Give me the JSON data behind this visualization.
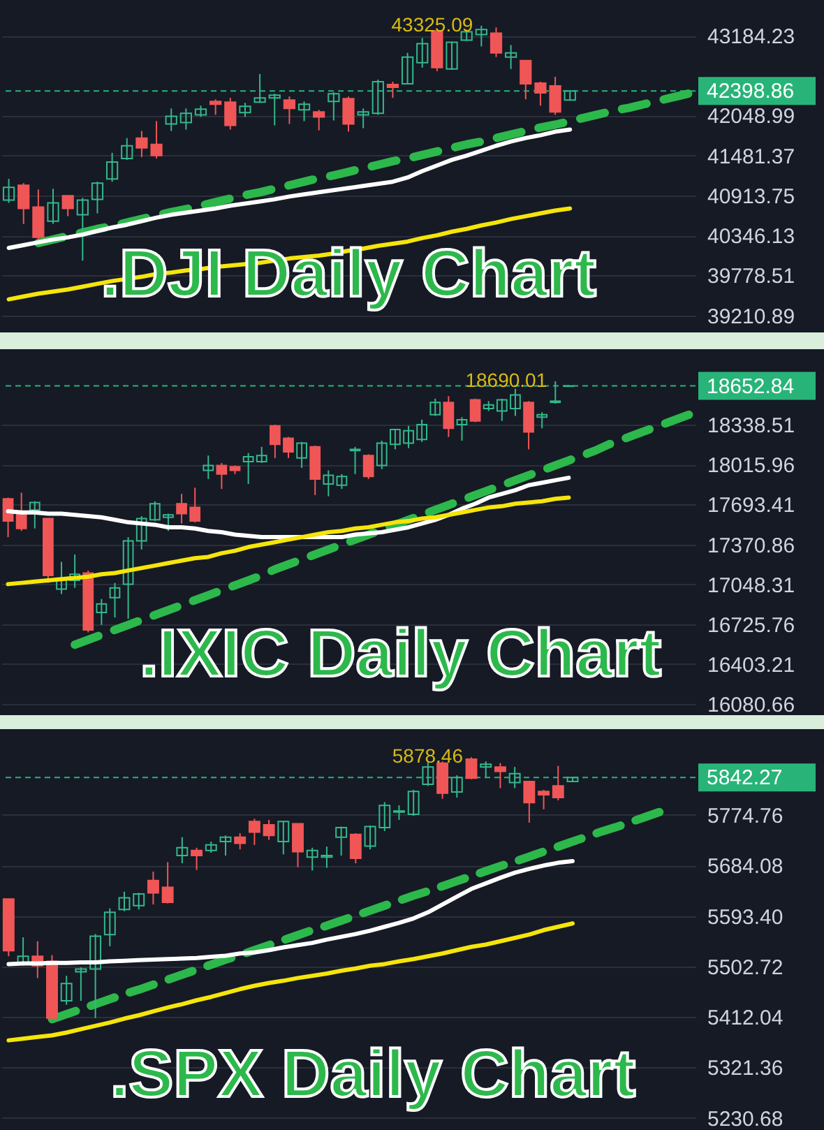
{
  "chart_data": [
    {
      "type": "candlestick",
      "title": ".DJI Daily Chart",
      "categories": [
        null,
        null,
        null,
        null,
        null,
        null,
        null,
        null,
        null,
        null,
        null,
        null,
        null,
        null,
        null,
        null,
        null,
        null,
        null,
        null,
        null,
        null,
        null,
        null,
        null,
        null,
        null,
        null,
        null,
        null,
        null,
        null,
        null,
        null,
        null,
        null,
        null,
        null,
        null,
        null,
        null,
        null,
        null,
        null,
        null,
        null,
        null
      ],
      "ohlc": [
        [
          40850,
          41150,
          40810,
          41030
        ],
        [
          41060,
          41090,
          40510,
          40730
        ],
        [
          40750,
          41000,
          40290,
          40320
        ],
        [
          40550,
          41010,
          40510,
          40810
        ],
        [
          40910,
          40910,
          40620,
          40730
        ],
        [
          40640,
          40880,
          39990,
          40850
        ],
        [
          40860,
          41110,
          40660,
          41090
        ],
        [
          41150,
          41520,
          41110,
          41390
        ],
        [
          41440,
          41730,
          41420,
          41620
        ],
        [
          41730,
          41830,
          41460,
          41590
        ],
        [
          41640,
          41970,
          41440,
          41480
        ],
        [
          41930,
          42150,
          41830,
          42040
        ],
        [
          41950,
          42150,
          41850,
          42080
        ],
        [
          42060,
          42190,
          42030,
          42140
        ],
        [
          42250,
          42280,
          42060,
          42210
        ],
        [
          42240,
          42300,
          41850,
          41910
        ],
        [
          42090,
          42230,
          42030,
          42180
        ],
        [
          42240,
          42640,
          42230,
          42300
        ],
        [
          42300,
          42360,
          41910,
          42340
        ],
        [
          42270,
          42320,
          41930,
          42150
        ],
        [
          42130,
          42250,
          41970,
          42210
        ],
        [
          42100,
          42130,
          41840,
          42030
        ],
        [
          42250,
          42380,
          41980,
          42360
        ],
        [
          42290,
          42320,
          41820,
          41930
        ],
        [
          42060,
          42150,
          41870,
          42100
        ],
        [
          42080,
          42560,
          42060,
          42530
        ],
        [
          42490,
          42530,
          42300,
          42450
        ],
        [
          42500,
          42940,
          42490,
          42880
        ],
        [
          42800,
          43150,
          42730,
          43070
        ],
        [
          43250,
          43250,
          42680,
          42730
        ],
        [
          42710,
          43100,
          42700,
          43090
        ],
        [
          43120,
          43270,
          43110,
          43240
        ],
        [
          43200,
          43325.09,
          43030,
          43270
        ],
        [
          43220,
          43300,
          42880,
          42940
        ],
        [
          42880,
          43050,
          42710,
          42940
        ],
        [
          42830,
          42830,
          42280,
          42500
        ],
        [
          42510,
          42530,
          42190,
          42370
        ],
        [
          42470,
          42600,
          42060,
          42100
        ],
        [
          42270,
          42398.86,
          42270,
          42398.86
        ],
        null,
        null,
        null,
        null,
        null,
        null,
        null,
        null
      ],
      "series": [
        {
          "type": "line",
          "color": "#ffffff",
          "values": [
            40170,
            40210,
            40250,
            40290,
            40320,
            40360,
            40410,
            40460,
            40500,
            40550,
            40600,
            40640,
            40670,
            40700,
            40730,
            40770,
            40800,
            40830,
            40860,
            40900,
            40930,
            40960,
            40990,
            41020,
            41050,
            41080,
            41110,
            41170,
            41260,
            41340,
            41420,
            41480,
            41550,
            41620,
            41680,
            41730,
            41770,
            41820,
            41850,
            null,
            null,
            null,
            null,
            null,
            null,
            null,
            null
          ]
        },
        {
          "type": "line",
          "color": "#f5e50a",
          "values": [
            39440,
            39480,
            39520,
            39550,
            39580,
            39620,
            39660,
            39700,
            39730,
            39760,
            39800,
            39820,
            39850,
            39870,
            39900,
            39920,
            39940,
            39960,
            39990,
            40020,
            40040,
            40060,
            40090,
            40130,
            40160,
            40200,
            40230,
            40260,
            40310,
            40350,
            40400,
            40440,
            40490,
            40530,
            40580,
            40620,
            40660,
            40700,
            40730,
            null,
            null,
            null,
            null,
            null,
            null,
            null,
            null
          ]
        },
        {
          "type": "line",
          "color": "#2db84c",
          "line_style": "dashed",
          "values": [
            null,
            null,
            40240,
            40290,
            40340,
            40390,
            40440,
            40480,
            40530,
            40580,
            40630,
            40680,
            40720,
            40770,
            40820,
            40870,
            40920,
            40960,
            41010,
            41060,
            41110,
            41160,
            41200,
            41250,
            41300,
            41350,
            41400,
            41440,
            41490,
            41540,
            41590,
            41640,
            41680,
            41730,
            41780,
            41830,
            41880,
            41920,
            41970,
            42020,
            42070,
            42120,
            42160,
            42210,
            42260,
            42310,
            42360
          ]
        }
      ],
      "ylim": [
        38970,
        43690
      ],
      "yticks": [
        39210.89,
        39778.51,
        40346.13,
        40913.75,
        41481.37,
        42048.99,
        43184.23
      ],
      "grid": "y",
      "tick_labels": "y",
      "ref_lines": [
        {
          "axis": "y",
          "value": 42398.86,
          "label": "42398.86",
          "color": "#28b478",
          "line_style": "dashed"
        }
      ],
      "annotations": [
        {
          "text": "43325.09",
          "y": 43325.09
        }
      ]
    },
    {
      "type": "candlestick",
      "title": ".IXIC Daily Chart",
      "categories": [
        null,
        null,
        null,
        null,
        null,
        null,
        null,
        null,
        null,
        null,
        null,
        null,
        null,
        null,
        null,
        null,
        null,
        null,
        null,
        null,
        null,
        null,
        null,
        null,
        null,
        null,
        null,
        null,
        null,
        null,
        null,
        null,
        null,
        null,
        null,
        null,
        null,
        null,
        null,
        null,
        null,
        null,
        null,
        null,
        null,
        null,
        null,
        null,
        null,
        null,
        null,
        null
      ],
      "ohlc": [
        [
          17740,
          17750,
          17430,
          17560
        ],
        [
          17620,
          17790,
          17480,
          17500
        ],
        [
          17650,
          17720,
          17500,
          17710
        ],
        [
          17580,
          17580,
          17060,
          17120
        ],
        [
          17010,
          17230,
          16970,
          17090
        ],
        [
          17080,
          17290,
          17020,
          17130
        ],
        [
          17140,
          17160,
          16660,
          16680
        ],
        [
          16820,
          16930,
          16720,
          16890
        ],
        [
          16940,
          17060,
          16780,
          17020
        ],
        [
          17050,
          17430,
          16770,
          17400
        ],
        [
          17400,
          17600,
          17330,
          17580
        ],
        [
          17570,
          17720,
          17560,
          17700
        ],
        [
          17590,
          17620,
          17480,
          17610
        ],
        [
          17700,
          17780,
          17540,
          17620
        ],
        [
          17670,
          17830,
          17550,
          17560
        ],
        [
          17970,
          18090,
          17900,
          18010
        ],
        [
          18010,
          18030,
          17820,
          17940
        ],
        [
          18000,
          18010,
          17940,
          17970
        ],
        [
          18040,
          18110,
          17860,
          18080
        ],
        [
          18040,
          18160,
          18030,
          18090
        ],
        [
          18330,
          18340,
          18070,
          18180
        ],
        [
          18230,
          18240,
          18070,
          18120
        ],
        [
          18070,
          18200,
          17990,
          18190
        ],
        [
          18160,
          18170,
          17770,
          17900
        ],
        [
          17860,
          17970,
          17760,
          17930
        ],
        [
          17850,
          17940,
          17820,
          17920
        ],
        [
          18130,
          18160,
          17940,
          18140
        ],
        [
          18090,
          18100,
          17900,
          17920
        ],
        [
          18010,
          18210,
          17980,
          18190
        ],
        [
          18180,
          18300,
          18140,
          18300
        ],
        [
          18190,
          18330,
          18150,
          18290
        ],
        [
          18220,
          18380,
          18200,
          18340
        ],
        [
          18420,
          18550,
          18410,
          18520
        ],
        [
          18520,
          18570,
          18240,
          18310
        ],
        [
          18340,
          18400,
          18210,
          18380
        ],
        [
          18540,
          18550,
          18360,
          18370
        ],
        [
          18470,
          18530,
          18450,
          18500
        ],
        [
          18450,
          18550,
          18370,
          18540
        ],
        [
          18470,
          18630,
          18410,
          18580
        ],
        [
          18520,
          18530,
          18140,
          18280
        ],
        [
          18400,
          18440,
          18310,
          18420
        ],
        [
          18520,
          18690.01,
          18510,
          18530
        ],
        [
          18650,
          18660,
          18650,
          18652.84
        ],
        null,
        null,
        null,
        null,
        null,
        null,
        null,
        null,
        null
      ],
      "series": [
        {
          "type": "line",
          "color": "#ffffff",
          "values": [
            17640,
            17630,
            17630,
            17620,
            17620,
            17610,
            17600,
            17590,
            17570,
            17550,
            17540,
            17530,
            17510,
            17510,
            17500,
            17480,
            17470,
            17450,
            17440,
            17430,
            17430,
            17430,
            17430,
            17430,
            17430,
            17430,
            17450,
            17460,
            17470,
            17490,
            17510,
            17540,
            17570,
            17610,
            17660,
            17700,
            17750,
            17780,
            17810,
            17850,
            17870,
            17890,
            17910,
            null,
            null,
            null,
            null,
            null,
            null,
            null,
            null,
            null
          ]
        },
        {
          "type": "line",
          "color": "#f5e50a",
          "values": [
            17050,
            17060,
            17070,
            17080,
            17090,
            17100,
            17110,
            17130,
            17140,
            17160,
            17180,
            17200,
            17220,
            17240,
            17260,
            17270,
            17300,
            17320,
            17350,
            17370,
            17390,
            17410,
            17430,
            17450,
            17470,
            17480,
            17500,
            17510,
            17530,
            17550,
            17560,
            17580,
            17590,
            17610,
            17630,
            17650,
            17670,
            17680,
            17700,
            17710,
            17720,
            17740,
            17750,
            null,
            null,
            null,
            null,
            null,
            null,
            null,
            null,
            null
          ]
        },
        {
          "type": "line",
          "color": "#2db84c",
          "line_style": "dashed",
          "values": [
            null,
            null,
            null,
            null,
            null,
            16560,
            16600,
            16640,
            16680,
            16720,
            16760,
            16800,
            16840,
            16880,
            16920,
            16960,
            17000,
            17040,
            17080,
            17120,
            17170,
            17210,
            17250,
            17290,
            17330,
            17370,
            17410,
            17450,
            17490,
            17530,
            17570,
            17610,
            17650,
            17690,
            17730,
            17770,
            17810,
            17850,
            17890,
            17930,
            17970,
            18010,
            18050,
            18090,
            18130,
            18180,
            18220,
            18260,
            18300,
            18340,
            18380,
            18420
          ]
        }
      ],
      "ylim": [
        16080.66,
        18950
      ],
      "yticks": [
        16080.66,
        16403.21,
        16725.76,
        17048.31,
        17370.86,
        17693.41,
        18015.96,
        18338.51
      ],
      "grid": "y",
      "tick_labels": "y",
      "ref_lines": [
        {
          "axis": "y",
          "value": 18652.84,
          "label": "18652.84",
          "color": "#28b478",
          "line_style": "dashed"
        }
      ],
      "annotations": [
        {
          "text": "18690.01",
          "y": 18690.01
        }
      ]
    },
    {
      "type": "candlestick",
      "title": ".SPX Daily Chart",
      "categories": [
        null,
        null,
        null,
        null,
        null,
        null,
        null,
        null,
        null,
        null,
        null,
        null,
        null,
        null,
        null,
        null,
        null,
        null,
        null,
        null,
        null,
        null,
        null,
        null,
        null,
        null,
        null,
        null,
        null,
        null,
        null,
        null,
        null,
        null,
        null,
        null,
        null,
        null,
        null,
        null,
        null,
        null,
        null,
        null,
        null,
        null,
        null,
        null
      ],
      "ohlc": [
        [
          5624,
          5624,
          5521,
          5531
        ],
        [
          5507,
          5555,
          5504,
          5521
        ],
        [
          5521,
          5548,
          5482,
          5504
        ],
        [
          5512,
          5523,
          5408,
          5410
        ],
        [
          5441,
          5486,
          5434,
          5472
        ],
        [
          5493,
          5501,
          5441,
          5498
        ],
        [
          5498,
          5561,
          5410,
          5557
        ],
        [
          5560,
          5607,
          5539,
          5600
        ],
        [
          5605,
          5637,
          5602,
          5626
        ],
        [
          5612,
          5635,
          5605,
          5633
        ],
        [
          5657,
          5673,
          5614,
          5635
        ],
        [
          5645,
          5690,
          5616,
          5618
        ],
        [
          5702,
          5735,
          5688,
          5716
        ],
        [
          5711,
          5716,
          5676,
          5702
        ],
        [
          5711,
          5727,
          5707,
          5721
        ],
        [
          5727,
          5738,
          5702,
          5735
        ],
        [
          5735,
          5742,
          5713,
          5724
        ],
        [
          5763,
          5768,
          5721,
          5744
        ],
        [
          5757,
          5766,
          5730,
          5738
        ],
        [
          5727,
          5763,
          5704,
          5763
        ],
        [
          5759,
          5759,
          5681,
          5709
        ],
        [
          5699,
          5716,
          5675,
          5711
        ],
        [
          5699,
          5718,
          5680,
          5702
        ],
        [
          5735,
          5754,
          5702,
          5752
        ],
        [
          5740,
          5742,
          5688,
          5697
        ],
        [
          5719,
          5756,
          5713,
          5754
        ],
        [
          5752,
          5798,
          5746,
          5792
        ],
        [
          5780,
          5792,
          5766,
          5782
        ],
        [
          5776,
          5820,
          5773,
          5817
        ],
        [
          5830,
          5870,
          5827,
          5861
        ],
        [
          5868,
          5871,
          5804,
          5814
        ],
        [
          5816,
          5846,
          5806,
          5842
        ],
        [
          5875,
          5878.46,
          5839,
          5841
        ],
        [
          5861,
          5871,
          5842,
          5866
        ],
        [
          5861,
          5868,
          5823,
          5853
        ],
        [
          5833,
          5861,
          5823,
          5849
        ],
        [
          5835,
          5836,
          5761,
          5797
        ],
        [
          5817,
          5820,
          5785,
          5811
        ],
        [
          5827,
          5863,
          5801,
          5806
        ],
        [
          5835,
          5842.27,
          5835,
          5842.27
        ],
        null,
        null,
        null,
        null,
        null,
        null,
        null,
        null
      ],
      "series": [
        {
          "type": "line",
          "color": "#ffffff",
          "values": [
            5507,
            5508,
            5508,
            5509,
            5509,
            5510,
            5510,
            5512,
            5513,
            5514,
            5515,
            5516,
            5517,
            5518,
            5520,
            5522,
            5526,
            5528,
            5532,
            5537,
            5541,
            5545,
            5551,
            5556,
            5561,
            5567,
            5574,
            5581,
            5589,
            5600,
            5614,
            5628,
            5642,
            5652,
            5662,
            5671,
            5678,
            5684,
            5689,
            5692,
            null,
            null,
            null,
            null,
            null,
            null,
            null,
            null
          ]
        },
        {
          "type": "line",
          "color": "#f5e50a",
          "values": [
            5370,
            5373,
            5376,
            5379,
            5384,
            5390,
            5396,
            5402,
            5409,
            5415,
            5422,
            5429,
            5435,
            5442,
            5448,
            5455,
            5462,
            5468,
            5473,
            5477,
            5482,
            5486,
            5490,
            5495,
            5499,
            5504,
            5507,
            5512,
            5516,
            5521,
            5526,
            5532,
            5538,
            5542,
            5548,
            5554,
            5560,
            5568,
            5574,
            5580,
            null,
            null,
            null,
            null,
            null,
            null,
            null,
            null
          ]
        },
        {
          "type": "line",
          "color": "#2db84c",
          "line_style": "dashed",
          "values": [
            null,
            null,
            null,
            5408,
            5417,
            5426,
            5435,
            5444,
            5453,
            5461,
            5470,
            5479,
            5488,
            5497,
            5506,
            5515,
            5523,
            5532,
            5541,
            5550,
            5559,
            5568,
            5576,
            5585,
            5594,
            5603,
            5612,
            5621,
            5630,
            5638,
            5647,
            5656,
            5665,
            5674,
            5683,
            5691,
            5700,
            5709,
            5718,
            5727,
            5736,
            5745,
            5753,
            5762,
            5771,
            5780,
            null,
            null
          ]
        }
      ],
      "ylim": [
        5214,
        5929
      ],
      "yticks": [
        5230.68,
        5321.36,
        5412.04,
        5502.72,
        {
          "value": 5593.4,
          "label": "5593.40"
        },
        5684.08,
        5774.76
      ],
      "grid": "y",
      "tick_labels": "y",
      "ref_lines": [
        {
          "axis": "y",
          "value": 5842.27,
          "label": "5842.27",
          "color": "#28b478",
          "line_style": "dashed"
        }
      ],
      "annotations": [
        {
          "text": "5878.46",
          "y": 5878.46
        }
      ]
    }
  ]
}
